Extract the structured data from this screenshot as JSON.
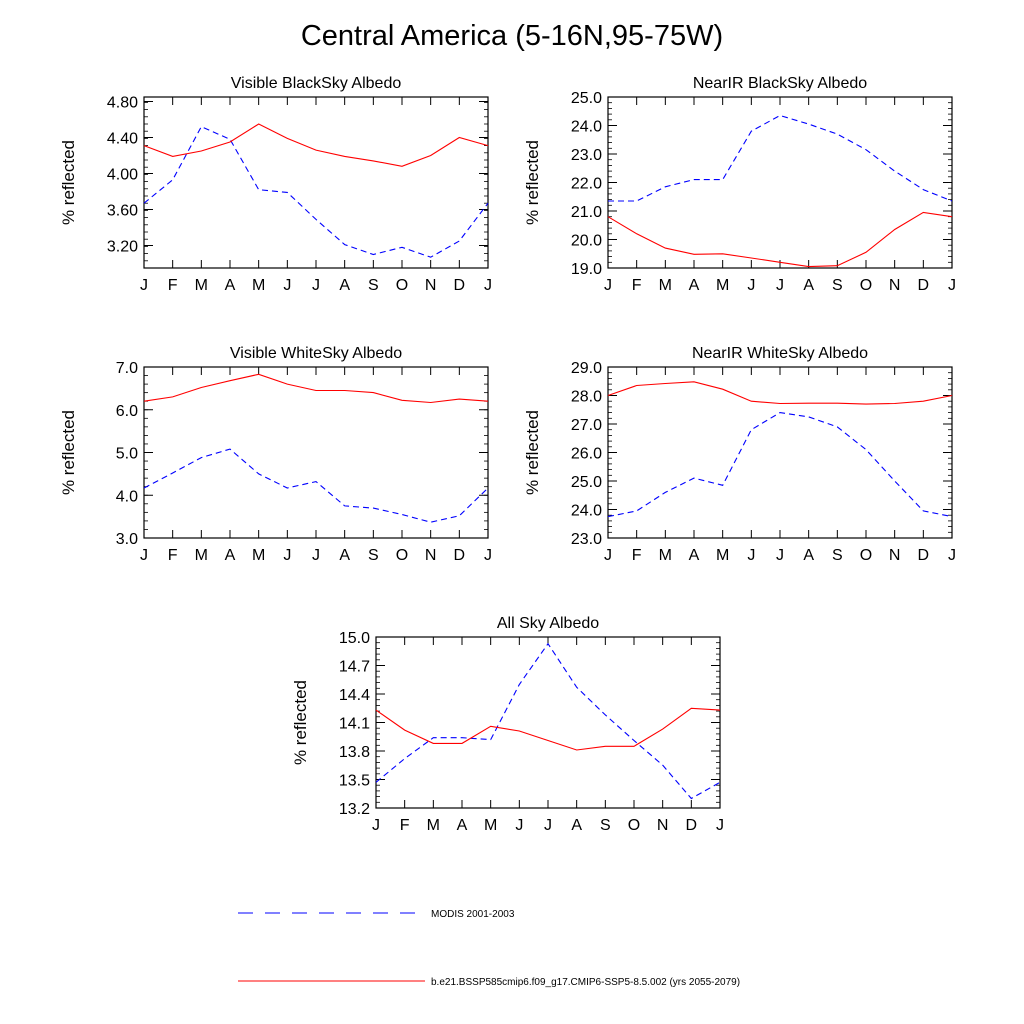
{
  "title": "Central America (5-16N,95-75W)",
  "chart_data": [
    {
      "type": "line",
      "title": "Visible BlackSky Albedo",
      "ylabel": "% reflected",
      "categories": [
        "J",
        "F",
        "M",
        "A",
        "M",
        "J",
        "J",
        "A",
        "S",
        "O",
        "N",
        "D",
        "J"
      ],
      "ylim": [
        2.95,
        4.85
      ],
      "yticks": [
        3.2,
        3.6,
        4.0,
        4.4,
        4.8
      ],
      "yticklabels": [
        "3.20",
        "3.60",
        "4.00",
        "4.40",
        "4.80"
      ],
      "series": [
        {
          "name": "MODIS 2001-2003",
          "color": "#0000ff",
          "dash": true,
          "values": [
            3.67,
            3.93,
            4.52,
            4.38,
            3.82,
            3.79,
            3.49,
            3.21,
            3.1,
            3.18,
            3.07,
            3.25,
            3.67
          ]
        },
        {
          "name": "b.e21.BSSP585cmip6.f09_g17.CMIP6-SSP5-8.5.002 (yrs 2055-2079)",
          "color": "#ff0000",
          "dash": false,
          "values": [
            4.31,
            4.19,
            4.25,
            4.35,
            4.55,
            4.39,
            4.26,
            4.19,
            4.14,
            4.08,
            4.2,
            4.4,
            4.31
          ]
        }
      ]
    },
    {
      "type": "line",
      "title": "NearIR BlackSky Albedo",
      "ylabel": "% reflected",
      "categories": [
        "J",
        "F",
        "M",
        "A",
        "M",
        "J",
        "J",
        "A",
        "S",
        "O",
        "N",
        "D",
        "J"
      ],
      "ylim": [
        19.0,
        25.0
      ],
      "yticks": [
        19.0,
        20.0,
        21.0,
        22.0,
        23.0,
        24.0,
        25.0
      ],
      "yticklabels": [
        "19.0",
        "20.0",
        "21.0",
        "22.0",
        "23.0",
        "24.0",
        "25.0"
      ],
      "series": [
        {
          "name": "MODIS 2001-2003",
          "color": "#0000ff",
          "dash": true,
          "values": [
            21.35,
            21.35,
            21.85,
            22.1,
            22.1,
            23.8,
            24.35,
            24.05,
            23.7,
            23.15,
            22.4,
            21.75,
            21.35
          ]
        },
        {
          "name": "b.e21.BSSP585cmip6.f09_g17.CMIP6-SSP5-8.5.002 (yrs 2055-2079)",
          "color": "#ff0000",
          "dash": false,
          "values": [
            20.8,
            20.2,
            19.7,
            19.48,
            19.5,
            19.35,
            19.2,
            19.05,
            19.08,
            19.55,
            20.35,
            20.95,
            20.8
          ]
        }
      ]
    },
    {
      "type": "line",
      "title": "Visible WhiteSky Albedo",
      "ylabel": "% reflected",
      "categories": [
        "J",
        "F",
        "M",
        "A",
        "M",
        "J",
        "J",
        "A",
        "S",
        "O",
        "N",
        "D",
        "J"
      ],
      "ylim": [
        3.0,
        7.0
      ],
      "yticks": [
        3.0,
        4.0,
        5.0,
        6.0,
        7.0
      ],
      "yticklabels": [
        "3.0",
        "4.0",
        "5.0",
        "6.0",
        "7.0"
      ],
      "series": [
        {
          "name": "MODIS 2001-2003",
          "color": "#0000ff",
          "dash": true,
          "values": [
            4.17,
            4.52,
            4.88,
            5.08,
            4.5,
            4.17,
            4.32,
            3.75,
            3.7,
            3.55,
            3.37,
            3.52,
            4.17
          ]
        },
        {
          "name": "b.e21.BSSP585cmip6.f09_g17.CMIP6-SSP5-8.5.002 (yrs 2055-2079)",
          "color": "#ff0000",
          "dash": false,
          "values": [
            6.2,
            6.3,
            6.52,
            6.68,
            6.83,
            6.6,
            6.45,
            6.45,
            6.4,
            6.22,
            6.17,
            6.25,
            6.2
          ]
        }
      ]
    },
    {
      "type": "line",
      "title": "NearIR WhiteSky Albedo",
      "ylabel": "% reflected",
      "categories": [
        "J",
        "F",
        "M",
        "A",
        "M",
        "J",
        "J",
        "A",
        "S",
        "O",
        "N",
        "D",
        "J"
      ],
      "ylim": [
        23.0,
        29.0
      ],
      "yticks": [
        23.0,
        24.0,
        25.0,
        26.0,
        27.0,
        28.0,
        29.0
      ],
      "yticklabels": [
        "23.0",
        "24.0",
        "25.0",
        "26.0",
        "27.0",
        "28.0",
        "29.0"
      ],
      "series": [
        {
          "name": "MODIS 2001-2003",
          "color": "#0000ff",
          "dash": true,
          "values": [
            23.75,
            23.95,
            24.6,
            25.1,
            24.85,
            26.8,
            27.4,
            27.25,
            26.9,
            26.1,
            25.0,
            23.95,
            23.75
          ]
        },
        {
          "name": "b.e21.BSSP585cmip6.f09_g17.CMIP6-SSP5-8.5.002 (yrs 2055-2079)",
          "color": "#ff0000",
          "dash": false,
          "values": [
            28.0,
            28.35,
            28.42,
            28.48,
            28.22,
            27.8,
            27.72,
            27.73,
            27.73,
            27.7,
            27.72,
            27.8,
            28.0
          ]
        }
      ]
    },
    {
      "type": "line",
      "title": "All Sky Albedo",
      "ylabel": "% reflected",
      "categories": [
        "J",
        "F",
        "M",
        "A",
        "M",
        "J",
        "J",
        "A",
        "S",
        "O",
        "N",
        "D",
        "J"
      ],
      "ylim": [
        13.2,
        15.0
      ],
      "yticks": [
        13.2,
        13.5,
        13.8,
        14.1,
        14.4,
        14.7,
        15.0
      ],
      "yticklabels": [
        "13.2",
        "13.5",
        "13.8",
        "14.1",
        "14.4",
        "14.7",
        "15.0"
      ],
      "series": [
        {
          "name": "MODIS 2001-2003",
          "color": "#0000ff",
          "dash": true,
          "values": [
            13.47,
            13.72,
            13.94,
            13.94,
            13.92,
            14.5,
            14.93,
            14.47,
            14.18,
            13.91,
            13.65,
            13.3,
            13.47
          ]
        },
        {
          "name": "b.e21.BSSP585cmip6.f09_g17.CMIP6-SSP5-8.5.002 (yrs 2055-2079)",
          "color": "#ff0000",
          "dash": false,
          "values": [
            14.23,
            14.02,
            13.88,
            13.88,
            14.06,
            14.01,
            13.91,
            13.81,
            13.85,
            13.85,
            14.03,
            14.25,
            14.23
          ]
        }
      ]
    }
  ],
  "legend": [
    {
      "label": "MODIS 2001-2003",
      "color": "#0000ff",
      "dash": true
    },
    {
      "label": "b.e21.BSSP585cmip6.f09_g17.CMIP6-SSP5-8.5.002 (yrs 2055-2079)",
      "color": "#ff0000",
      "dash": false
    }
  ]
}
